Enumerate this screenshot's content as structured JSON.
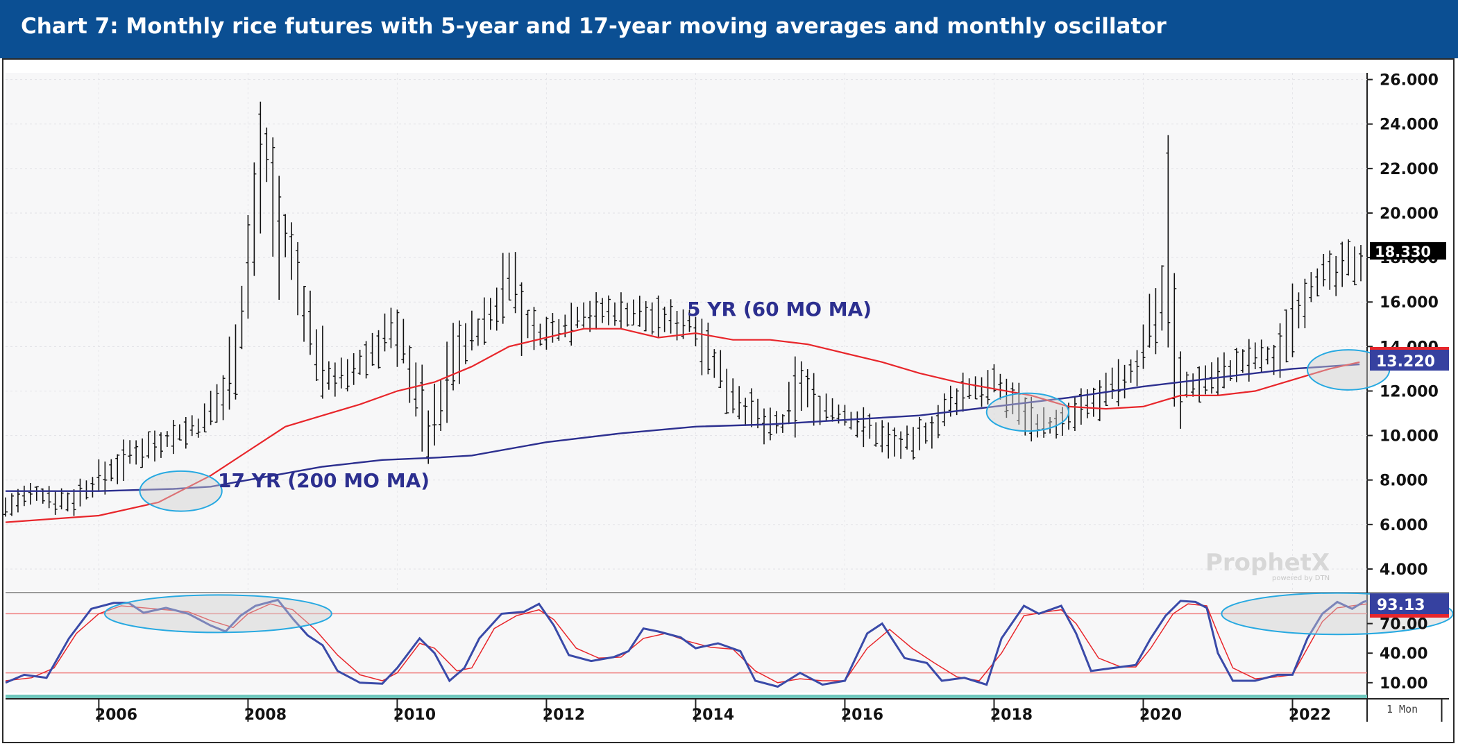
{
  "title": "Chart 7: Monthly rice futures with 5-year and 17-year moving averages and monthly oscillator",
  "watermark": {
    "brand": "ProphetX",
    "tagline": "powered by DTN"
  },
  "colors": {
    "price_bars": "#111111",
    "ma_5yr": "#e8262b",
    "ma_17yr": "#2c2f8f",
    "osc_main": "#3a4aa8",
    "osc_signal": "#e8262b",
    "highlight_fill": "#cfcfcf",
    "highlight_stroke": "#27a9e1",
    "badge_price": "#000000",
    "badge_ma": "#3641a0",
    "annotation_text": "#2c2f8f",
    "band_lines": "#f08080"
  },
  "chart_data": [
    {
      "type": "ohlc-bars",
      "title": "Monthly rice futures",
      "timeframe_label": "1 Mon",
      "x_tick_labels": [
        "2006",
        "2008",
        "2010",
        "2012",
        "2014",
        "2016",
        "2018",
        "2020",
        "2022"
      ],
      "x_range": [
        2004.75,
        2023.0
      ],
      "y_range": [
        3.0,
        26.3
      ],
      "y_ticks": [
        "4.000",
        "6.000",
        "8.000",
        "10.000",
        "12.000",
        "14.000",
        "16.000",
        "18.000",
        "20.000",
        "22.000",
        "24.000",
        "26.000"
      ],
      "last_price_label": "18.330",
      "ma_value_label": "13.220",
      "annotations": [
        "5 YR (60 MO MA)",
        "17 YR (200 MO MA)"
      ],
      "price_anchors": [
        [
          2004.75,
          6.8
        ],
        [
          2005.2,
          7.4
        ],
        [
          2005.6,
          7.0
        ],
        [
          2006.0,
          8.0
        ],
        [
          2006.5,
          9.3
        ],
        [
          2007.0,
          10.0
        ],
        [
          2007.4,
          10.5
        ],
        [
          2007.7,
          12.0
        ],
        [
          2007.9,
          15.0
        ],
        [
          2008.1,
          20.0
        ],
        [
          2008.2,
          24.0
        ],
        [
          2008.4,
          19.5
        ],
        [
          2008.6,
          18.0
        ],
        [
          2008.8,
          15.0
        ],
        [
          2009.0,
          13.0
        ],
        [
          2009.3,
          12.5
        ],
        [
          2009.6,
          13.5
        ],
        [
          2009.9,
          14.8
        ],
        [
          2010.1,
          14.0
        ],
        [
          2010.3,
          11.5
        ],
        [
          2010.4,
          10.0
        ],
        [
          2010.6,
          11.5
        ],
        [
          2010.8,
          14.0
        ],
        [
          2011.0,
          14.5
        ],
        [
          2011.3,
          15.5
        ],
        [
          2011.5,
          17.5
        ],
        [
          2011.7,
          15.0
        ],
        [
          2012.0,
          14.5
        ],
        [
          2012.5,
          15.5
        ],
        [
          2013.0,
          15.6
        ],
        [
          2013.5,
          15.3
        ],
        [
          2014.0,
          15.0
        ],
        [
          2014.3,
          12.8
        ],
        [
          2014.6,
          11.5
        ],
        [
          2014.9,
          10.5
        ],
        [
          2015.2,
          10.5
        ],
        [
          2015.4,
          12.5
        ],
        [
          2015.6,
          11.5
        ],
        [
          2015.9,
          11.0
        ],
        [
          2016.2,
          10.5
        ],
        [
          2016.6,
          9.8
        ],
        [
          2016.9,
          9.6
        ],
        [
          2017.3,
          10.8
        ],
        [
          2017.6,
          12.0
        ],
        [
          2018.0,
          12.3
        ],
        [
          2018.3,
          11.5
        ],
        [
          2018.6,
          10.5
        ],
        [
          2018.9,
          10.5
        ],
        [
          2019.2,
          11.2
        ],
        [
          2019.5,
          11.8
        ],
        [
          2019.9,
          13.0
        ],
        [
          2020.1,
          15.0
        ],
        [
          2020.3,
          16.8
        ],
        [
          2020.45,
          12.0
        ],
        [
          2020.8,
          12.5
        ],
        [
          2021.2,
          13.0
        ],
        [
          2021.5,
          13.5
        ],
        [
          2021.8,
          13.5
        ],
        [
          2022.0,
          15.5
        ],
        [
          2022.3,
          17.0
        ],
        [
          2022.6,
          17.3
        ],
        [
          2022.9,
          18.0
        ]
      ],
      "ma_5yr": [
        [
          2004.75,
          6.1
        ],
        [
          2006.0,
          6.4
        ],
        [
          2006.8,
          7.0
        ],
        [
          2007.5,
          8.2
        ],
        [
          2008.0,
          9.3
        ],
        [
          2008.5,
          10.4
        ],
        [
          2009.0,
          10.9
        ],
        [
          2009.5,
          11.4
        ],
        [
          2010.0,
          12.0
        ],
        [
          2010.5,
          12.4
        ],
        [
          2011.0,
          13.1
        ],
        [
          2011.5,
          14.0
        ],
        [
          2012.0,
          14.4
        ],
        [
          2012.5,
          14.8
        ],
        [
          2013.0,
          14.8
        ],
        [
          2013.5,
          14.4
        ],
        [
          2014.0,
          14.6
        ],
        [
          2014.5,
          14.3
        ],
        [
          2015.0,
          14.3
        ],
        [
          2015.5,
          14.1
        ],
        [
          2016.0,
          13.7
        ],
        [
          2016.5,
          13.3
        ],
        [
          2017.0,
          12.8
        ],
        [
          2017.5,
          12.4
        ],
        [
          2018.0,
          12.1
        ],
        [
          2018.5,
          11.8
        ],
        [
          2019.0,
          11.3
        ],
        [
          2019.5,
          11.2
        ],
        [
          2020.0,
          11.3
        ],
        [
          2020.5,
          11.8
        ],
        [
          2021.0,
          11.8
        ],
        [
          2021.5,
          12.0
        ],
        [
          2022.0,
          12.5
        ],
        [
          2022.5,
          13.0
        ],
        [
          2022.9,
          13.3
        ]
      ],
      "ma_17yr": [
        [
          2004.75,
          7.5
        ],
        [
          2006.0,
          7.5
        ],
        [
          2007.0,
          7.6
        ],
        [
          2007.5,
          7.7
        ],
        [
          2008.0,
          8.0
        ],
        [
          2009.0,
          8.6
        ],
        [
          2009.8,
          8.9
        ],
        [
          2010.5,
          9.0
        ],
        [
          2011.0,
          9.1
        ],
        [
          2012.0,
          9.7
        ],
        [
          2013.0,
          10.1
        ],
        [
          2014.0,
          10.4
        ],
        [
          2015.0,
          10.5
        ],
        [
          2016.0,
          10.7
        ],
        [
          2017.0,
          10.9
        ],
        [
          2018.0,
          11.3
        ],
        [
          2019.0,
          11.7
        ],
        [
          2020.0,
          12.2
        ],
        [
          2021.0,
          12.6
        ],
        [
          2022.0,
          13.0
        ],
        [
          2022.9,
          13.2
        ]
      ],
      "highlight_ellipses": [
        {
          "center": [
            2007.1,
            7.5
          ],
          "radius": [
            0.55,
            0.9
          ]
        },
        {
          "center": [
            2018.45,
            11.05
          ],
          "radius": [
            0.55,
            0.85
          ]
        },
        {
          "center": [
            2022.75,
            12.95
          ],
          "radius": [
            0.55,
            0.9
          ]
        }
      ]
    },
    {
      "type": "line",
      "title": "Monthly oscillator",
      "y_range": [
        0,
        100
      ],
      "y_ticks": [
        "10.00",
        "40.00",
        "70.00"
      ],
      "band_levels": [
        20,
        80
      ],
      "current_value_label": "93.13",
      "series": [
        {
          "name": "oscillator",
          "points": [
            [
              2004.75,
              10
            ],
            [
              2005.0,
              18
            ],
            [
              2005.3,
              15
            ],
            [
              2005.6,
              55
            ],
            [
              2005.9,
              85
            ],
            [
              2006.2,
              91
            ],
            [
              2006.4,
              91
            ],
            [
              2006.6,
              81
            ],
            [
              2006.9,
              86
            ],
            [
              2007.2,
              80
            ],
            [
              2007.5,
              68
            ],
            [
              2007.7,
              62
            ],
            [
              2007.9,
              78
            ],
            [
              2008.1,
              88
            ],
            [
              2008.4,
              94
            ],
            [
              2008.6,
              75
            ],
            [
              2008.8,
              58
            ],
            [
              2009.0,
              48
            ],
            [
              2009.2,
              22
            ],
            [
              2009.5,
              10
            ],
            [
              2009.8,
              9
            ],
            [
              2010.0,
              25
            ],
            [
              2010.3,
              55
            ],
            [
              2010.5,
              40
            ],
            [
              2010.7,
              12
            ],
            [
              2010.9,
              25
            ],
            [
              2011.1,
              55
            ],
            [
              2011.4,
              80
            ],
            [
              2011.7,
              82
            ],
            [
              2011.9,
              90
            ],
            [
              2012.1,
              68
            ],
            [
              2012.3,
              38
            ],
            [
              2012.6,
              32
            ],
            [
              2012.9,
              36
            ],
            [
              2013.1,
              42
            ],
            [
              2013.3,
              65
            ],
            [
              2013.5,
              62
            ],
            [
              2013.8,
              56
            ],
            [
              2014.0,
              45
            ],
            [
              2014.3,
              50
            ],
            [
              2014.6,
              42
            ],
            [
              2014.8,
              12
            ],
            [
              2015.1,
              6
            ],
            [
              2015.4,
              20
            ],
            [
              2015.7,
              8
            ],
            [
              2016.0,
              12
            ],
            [
              2016.3,
              60
            ],
            [
              2016.5,
              70
            ],
            [
              2016.8,
              35
            ],
            [
              2017.1,
              30
            ],
            [
              2017.3,
              12
            ],
            [
              2017.6,
              15
            ],
            [
              2017.9,
              8
            ],
            [
              2018.1,
              55
            ],
            [
              2018.4,
              88
            ],
            [
              2018.6,
              80
            ],
            [
              2018.9,
              88
            ],
            [
              2019.1,
              60
            ],
            [
              2019.3,
              22
            ],
            [
              2019.6,
              25
            ],
            [
              2019.9,
              28
            ],
            [
              2020.1,
              55
            ],
            [
              2020.3,
              78
            ],
            [
              2020.5,
              93
            ],
            [
              2020.7,
              92
            ],
            [
              2020.85,
              86
            ],
            [
              2021.0,
              40
            ],
            [
              2021.2,
              12
            ],
            [
              2021.5,
              12
            ],
            [
              2021.8,
              18
            ],
            [
              2022.0,
              18
            ],
            [
              2022.2,
              55
            ],
            [
              2022.4,
              80
            ],
            [
              2022.6,
              92
            ],
            [
              2022.8,
              85
            ],
            [
              2022.95,
              92
            ],
            [
              2023.0,
              93
            ]
          ]
        },
        {
          "name": "signal",
          "points": [
            [
              2004.75,
              12
            ],
            [
              2005.1,
              15
            ],
            [
              2005.4,
              25
            ],
            [
              2005.7,
              60
            ],
            [
              2006.0,
              80
            ],
            [
              2006.3,
              88
            ],
            [
              2006.6,
              86
            ],
            [
              2006.9,
              84
            ],
            [
              2007.2,
              82
            ],
            [
              2007.5,
              73
            ],
            [
              2007.8,
              66
            ],
            [
              2008.0,
              80
            ],
            [
              2008.3,
              90
            ],
            [
              2008.6,
              84
            ],
            [
              2008.9,
              64
            ],
            [
              2009.2,
              38
            ],
            [
              2009.5,
              18
            ],
            [
              2009.8,
              12
            ],
            [
              2010.0,
              20
            ],
            [
              2010.3,
              50
            ],
            [
              2010.5,
              45
            ],
            [
              2010.8,
              22
            ],
            [
              2011.0,
              25
            ],
            [
              2011.3,
              65
            ],
            [
              2011.6,
              78
            ],
            [
              2011.9,
              84
            ],
            [
              2012.1,
              74
            ],
            [
              2012.4,
              45
            ],
            [
              2012.7,
              35
            ],
            [
              2013.0,
              36
            ],
            [
              2013.3,
              55
            ],
            [
              2013.6,
              60
            ],
            [
              2013.9,
              52
            ],
            [
              2014.2,
              46
            ],
            [
              2014.5,
              44
            ],
            [
              2014.8,
              22
            ],
            [
              2015.1,
              10
            ],
            [
              2015.4,
              14
            ],
            [
              2015.7,
              12
            ],
            [
              2016.0,
              12
            ],
            [
              2016.3,
              45
            ],
            [
              2016.6,
              64
            ],
            [
              2016.9,
              45
            ],
            [
              2017.2,
              30
            ],
            [
              2017.5,
              16
            ],
            [
              2017.8,
              12
            ],
            [
              2018.1,
              40
            ],
            [
              2018.4,
              78
            ],
            [
              2018.7,
              82
            ],
            [
              2018.9,
              84
            ],
            [
              2019.1,
              70
            ],
            [
              2019.4,
              35
            ],
            [
              2019.7,
              26
            ],
            [
              2019.9,
              26
            ],
            [
              2020.1,
              45
            ],
            [
              2020.4,
              80
            ],
            [
              2020.6,
              90
            ],
            [
              2020.85,
              88
            ],
            [
              2021.0,
              60
            ],
            [
              2021.2,
              25
            ],
            [
              2021.5,
              14
            ],
            [
              2021.8,
              16
            ],
            [
              2022.0,
              18
            ],
            [
              2022.2,
              45
            ],
            [
              2022.4,
              72
            ],
            [
              2022.6,
              86
            ],
            [
              2022.8,
              88
            ],
            [
              2023.0,
              90
            ]
          ]
        }
      ],
      "highlight_ellipses": [
        {
          "center": [
            2007.6,
            80
          ],
          "radius": [
            1.52,
            19
          ]
        },
        {
          "center": [
            2022.6,
            80
          ],
          "radius": [
            1.55,
            21
          ]
        }
      ]
    }
  ]
}
